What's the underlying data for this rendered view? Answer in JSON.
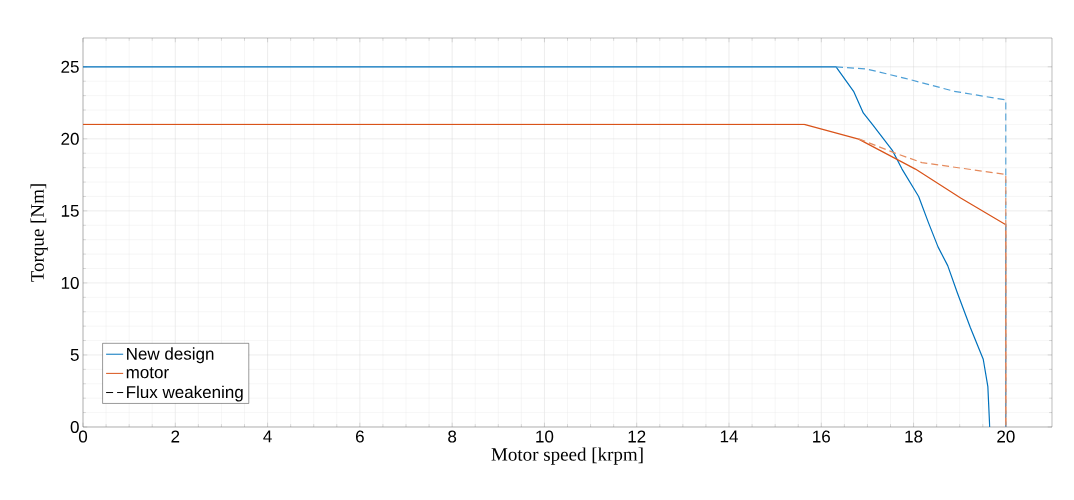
{
  "chart_data": {
    "type": "line",
    "xlabel": "Motor speed [krpm]",
    "ylabel": "Torque [Nm]",
    "xlim": [
      0,
      21
    ],
    "xticks": [
      0,
      2,
      4,
      6,
      8,
      10,
      12,
      14,
      16,
      18,
      20
    ],
    "ylim": [
      0,
      27
    ],
    "yticks": [
      0,
      5,
      10,
      15,
      20,
      25
    ],
    "grid": true,
    "legend": "bottom left",
    "marker": "none",
    "series": [
      {
        "name": "New design",
        "color": "#0072bd",
        "line_style": "solid",
        "x": [
          0,
          16.32,
          16.7,
          16.91,
          17.12,
          17.54,
          17.75,
          18.11,
          18.32,
          18.53,
          18.74,
          18.95,
          19.23,
          19.51,
          19.61,
          19.65
        ],
        "values": [
          25,
          25,
          23.3,
          21.8,
          20.95,
          19.2,
          17.9,
          16.0,
          14.2,
          12.5,
          11.2,
          9.3,
          6.9,
          4.7,
          2.8,
          0
        ]
      },
      {
        "name": "motor",
        "color": "#d95319",
        "line_style": "solid",
        "x": [
          0,
          15.63,
          16.81,
          18.04,
          19.02,
          20,
          20
        ],
        "values": [
          21,
          21,
          19.98,
          17.9,
          15.9,
          14.03,
          0
        ]
      },
      {
        "color": "#4d9fd6",
        "line_style": "dashed",
        "x": [
          16.32,
          16.98,
          17.82,
          18.88,
          20,
          20
        ],
        "values": [
          25,
          24.85,
          24.2,
          23.3,
          22.7,
          0
        ]
      },
      {
        "color": "#e58a5c",
        "line_style": "dashed",
        "x": [
          16.81,
          17.61,
          18.18,
          20,
          20
        ],
        "values": [
          20,
          19.0,
          18.35,
          17.53,
          0
        ]
      },
      {
        "name": "Flux weakening",
        "color": "#000000",
        "line_style": "dashed"
      }
    ]
  }
}
